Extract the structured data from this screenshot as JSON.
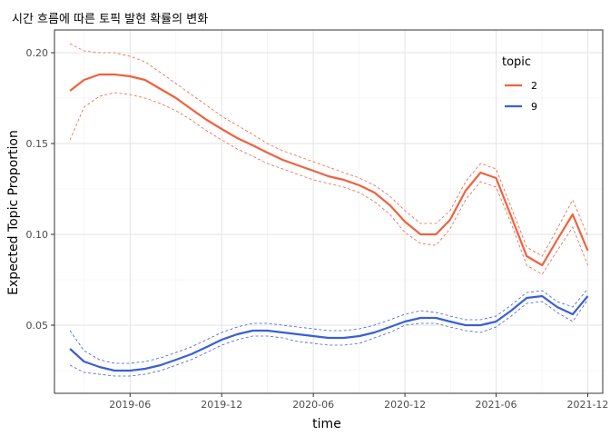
{
  "chart_data": {
    "type": "line",
    "title": "시간 흐름에 따른 토픽 발현 확률의 변화",
    "xlabel": "time",
    "ylabel": "Expected Topic Proportion",
    "ylim": [
      0.0125,
      0.2125
    ],
    "xlim": [
      "2019-01-01",
      "2021-12-31"
    ],
    "y_ticks": [
      0.05,
      0.1,
      0.15,
      0.2
    ],
    "y_tick_labels": [
      "0.05",
      "0.10",
      "0.15",
      "0.20"
    ],
    "x_ticks": [
      "2019-06-01",
      "2019-12-01",
      "2020-06-01",
      "2020-12-01",
      "2021-06-01",
      "2021-12-01"
    ],
    "x_tick_labels": [
      "2019-06",
      "2019-12",
      "2020-06",
      "2020-12",
      "2021-06",
      "2021-12"
    ],
    "grid": true,
    "legend": {
      "title": "topic",
      "position": "top-right"
    },
    "x": [
      "2019-02-01",
      "2019-03-01",
      "2019-04-01",
      "2019-05-01",
      "2019-06-01",
      "2019-07-01",
      "2019-08-01",
      "2019-09-01",
      "2019-10-01",
      "2019-11-01",
      "2019-12-01",
      "2020-01-01",
      "2020-02-01",
      "2020-03-01",
      "2020-04-01",
      "2020-05-01",
      "2020-06-01",
      "2020-07-01",
      "2020-08-01",
      "2020-09-01",
      "2020-10-01",
      "2020-11-01",
      "2020-12-01",
      "2021-01-01",
      "2021-02-01",
      "2021-03-01",
      "2021-04-01",
      "2021-05-01",
      "2021-06-01",
      "2021-07-01",
      "2021-08-01",
      "2021-09-01",
      "2021-10-01",
      "2021-11-01",
      "2021-12-01"
    ],
    "series": [
      {
        "name": "2",
        "color": "#F0613F",
        "values": [
          0.179,
          0.185,
          0.188,
          0.188,
          0.187,
          0.185,
          0.18,
          0.175,
          0.169,
          0.163,
          0.158,
          0.153,
          0.149,
          0.145,
          0.141,
          0.138,
          0.135,
          0.132,
          0.13,
          0.127,
          0.123,
          0.116,
          0.107,
          0.1,
          0.1,
          0.108,
          0.124,
          0.134,
          0.131,
          0.11,
          0.088,
          0.083,
          0.097,
          0.111,
          0.091
        ],
        "upper": [
          0.205,
          0.201,
          0.2,
          0.2,
          0.198,
          0.195,
          0.189,
          0.183,
          0.177,
          0.171,
          0.165,
          0.16,
          0.155,
          0.15,
          0.146,
          0.143,
          0.14,
          0.137,
          0.134,
          0.131,
          0.127,
          0.121,
          0.113,
          0.106,
          0.106,
          0.113,
          0.129,
          0.139,
          0.136,
          0.115,
          0.093,
          0.088,
          0.103,
          0.119,
          0.099
        ],
        "lower": [
          0.152,
          0.17,
          0.176,
          0.178,
          0.177,
          0.175,
          0.172,
          0.168,
          0.163,
          0.157,
          0.152,
          0.147,
          0.143,
          0.139,
          0.136,
          0.133,
          0.13,
          0.128,
          0.126,
          0.123,
          0.118,
          0.111,
          0.101,
          0.095,
          0.094,
          0.103,
          0.119,
          0.129,
          0.126,
          0.106,
          0.083,
          0.078,
          0.091,
          0.104,
          0.083
        ]
      },
      {
        "name": "9",
        "color": "#3A5FD6",
        "values": [
          0.037,
          0.03,
          0.027,
          0.025,
          0.025,
          0.026,
          0.028,
          0.031,
          0.034,
          0.038,
          0.042,
          0.045,
          0.047,
          0.047,
          0.046,
          0.045,
          0.044,
          0.043,
          0.043,
          0.044,
          0.046,
          0.049,
          0.052,
          0.054,
          0.054,
          0.052,
          0.05,
          0.05,
          0.052,
          0.058,
          0.065,
          0.066,
          0.06,
          0.056,
          0.066
        ],
        "upper": [
          0.047,
          0.036,
          0.031,
          0.029,
          0.029,
          0.03,
          0.032,
          0.035,
          0.038,
          0.042,
          0.046,
          0.049,
          0.051,
          0.051,
          0.05,
          0.049,
          0.048,
          0.047,
          0.047,
          0.048,
          0.05,
          0.053,
          0.056,
          0.058,
          0.057,
          0.055,
          0.053,
          0.053,
          0.055,
          0.061,
          0.068,
          0.069,
          0.063,
          0.06,
          0.07
        ],
        "lower": [
          0.028,
          0.024,
          0.023,
          0.022,
          0.022,
          0.023,
          0.025,
          0.028,
          0.031,
          0.035,
          0.039,
          0.042,
          0.044,
          0.044,
          0.043,
          0.041,
          0.04,
          0.039,
          0.039,
          0.04,
          0.043,
          0.046,
          0.05,
          0.051,
          0.051,
          0.049,
          0.047,
          0.046,
          0.049,
          0.055,
          0.062,
          0.063,
          0.057,
          0.052,
          0.064
        ]
      }
    ]
  }
}
